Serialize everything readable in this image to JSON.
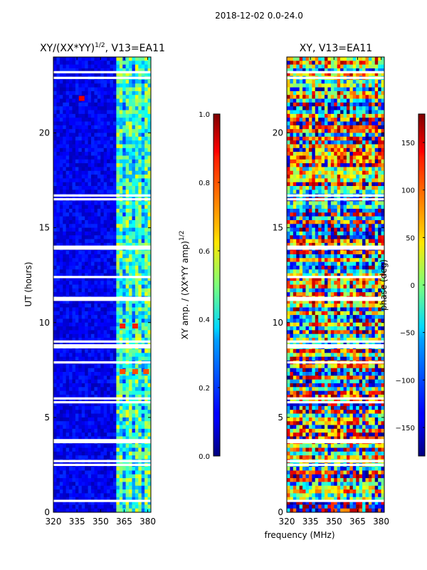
{
  "figure_title": "2018-12-02 0.0-24.0",
  "panel_left": {
    "title_prefix": "XY/(XX*YY)",
    "title_exp": "1/2",
    "title_suffix": ", V13=EA11"
  },
  "panel_right": {
    "title": "XY, V13=EA11"
  },
  "axes": {
    "ylabel": "UT (hours)",
    "xlabel": "frequency (MHz)",
    "xticks": [
      "320",
      "335",
      "350",
      "365",
      "380"
    ],
    "yticks": [
      "0",
      "5",
      "10",
      "15",
      "20"
    ]
  },
  "colorbar_left": {
    "label_prefix": "XY amp. / (XX*YY amp)",
    "label_exp": "1/2",
    "ticks": [
      "0.0",
      "0.2",
      "0.4",
      "0.6",
      "0.8",
      "1.0"
    ]
  },
  "colorbar_right": {
    "label": "phase (deg)",
    "ticks": [
      "−150",
      "−100",
      "−50",
      "0",
      "50",
      "100",
      "150"
    ]
  },
  "chart_data": [
    {
      "type": "heatmap",
      "title": "XY/(XX*YY)^1/2, V13=EA11",
      "xlabel": "",
      "ylabel": "UT (hours)",
      "xlim": [
        320,
        382
      ],
      "ylim": [
        0,
        24
      ],
      "xticks": [
        320,
        335,
        350,
        365,
        380
      ],
      "yticks": [
        0,
        5,
        10,
        15,
        20
      ],
      "colormap": "jet",
      "clim": [
        0.0,
        1.0
      ],
      "colorbar_label": "XY amp. / (XX*YY amp)^1/2",
      "colorbar_ticks": [
        0.0,
        0.2,
        0.4,
        0.6,
        0.8,
        1.0
      ],
      "band_structure": [
        {
          "freq_range": [
            320,
            360
          ],
          "typical_value": 0.1
        },
        {
          "freq_range": [
            360,
            382
          ],
          "typical_value": 0.45
        }
      ],
      "hot_spots": [
        {
          "freq": 338,
          "ut": 21.8,
          "value": 0.9
        },
        {
          "freq": 364,
          "ut": 9.8,
          "value": 0.85
        },
        {
          "freq": 372,
          "ut": 9.8,
          "value": 0.85
        },
        {
          "freq": 364,
          "ut": 7.4,
          "value": 0.8
        },
        {
          "freq": 372,
          "ut": 7.4,
          "value": 0.8
        },
        {
          "freq": 379,
          "ut": 7.4,
          "value": 0.8
        }
      ],
      "blank_ut_rows_hours": [
        23.2,
        22.9,
        16.7,
        16.5,
        14.0,
        13.9,
        12.4,
        11.3,
        11.2,
        9.0,
        8.8,
        8.7,
        7.9,
        6.0,
        5.8,
        3.8,
        3.7,
        2.7,
        2.5,
        0.6
      ]
    },
    {
      "type": "heatmap",
      "title": "XY, V13=EA11",
      "xlabel": "frequency (MHz)",
      "ylabel": "",
      "xlim": [
        320,
        382
      ],
      "ylim": [
        0,
        24
      ],
      "xticks": [
        320,
        335,
        350,
        365,
        380
      ],
      "yticks": [
        0,
        5,
        10,
        15,
        20
      ],
      "colormap": "jet",
      "clim": [
        -180,
        180
      ],
      "colorbar_label": "phase (deg)",
      "colorbar_ticks": [
        -150,
        -100,
        -50,
        0,
        50,
        100,
        150
      ],
      "value_distribution": "phase spread over full range, horizontal streaks",
      "blank_ut_rows_hours": [
        23.2,
        22.9,
        16.7,
        16.5,
        14.0,
        13.9,
        12.4,
        11.3,
        11.2,
        9.0,
        8.8,
        8.7,
        7.9,
        6.0,
        5.8,
        3.8,
        3.7,
        2.7,
        2.5,
        0.6
      ]
    }
  ]
}
